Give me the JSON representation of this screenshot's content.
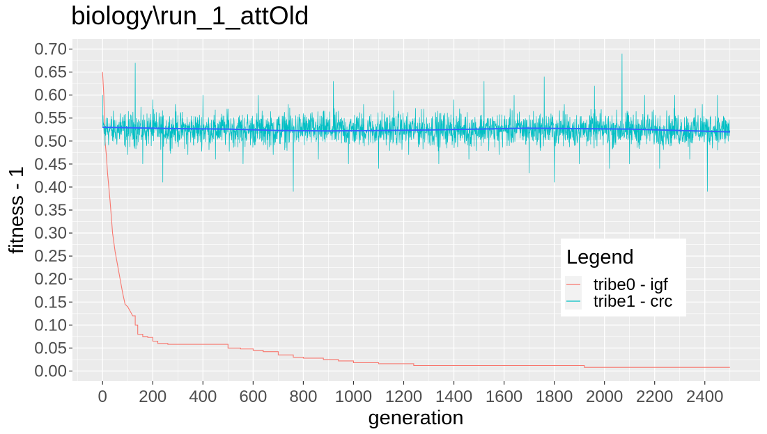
{
  "chart_data": {
    "type": "line",
    "title": "biology\\run_1_attOld",
    "xlabel": "generation",
    "ylabel": "fitness - 1",
    "xlim": [
      -120,
      2620
    ],
    "ylim": [
      -0.022,
      0.722
    ],
    "x_ticks": [
      "0",
      "200",
      "400",
      "600",
      "800",
      "1000",
      "1200",
      "1400",
      "1600",
      "1800",
      "2000",
      "2200",
      "2400"
    ],
    "y_ticks": [
      "0.00",
      "0.05",
      "0.10",
      "0.15",
      "0.20",
      "0.25",
      "0.30",
      "0.35",
      "0.40",
      "0.45",
      "0.50",
      "0.55",
      "0.60",
      "0.65",
      "0.70"
    ],
    "grid": true,
    "background": "#EBEBEB",
    "legend": {
      "title": "Legend",
      "position": "bottom-right",
      "entries": [
        "tribe0 - igf",
        "tribe1 - crc"
      ]
    },
    "series": [
      {
        "name": "tribe0 - igf",
        "color": "#F8766D",
        "x": [
          0,
          5,
          10,
          15,
          20,
          30,
          40,
          50,
          60,
          70,
          80,
          90,
          100,
          110,
          120,
          130,
          140,
          160,
          180,
          200,
          220,
          240,
          260,
          300,
          400,
          490,
          500,
          550,
          600,
          640,
          700,
          760,
          800,
          880,
          940,
          1000,
          1100,
          1200,
          1240,
          1300,
          1400,
          1600,
          1800,
          1900,
          1920,
          2000,
          2200,
          2400,
          2500
        ],
        "y": [
          0.65,
          0.6,
          0.5,
          0.47,
          0.43,
          0.37,
          0.3,
          0.26,
          0.23,
          0.2,
          0.17,
          0.145,
          0.14,
          0.13,
          0.12,
          0.1,
          0.08,
          0.075,
          0.073,
          0.065,
          0.06,
          0.06,
          0.058,
          0.058,
          0.058,
          0.058,
          0.05,
          0.048,
          0.045,
          0.042,
          0.035,
          0.03,
          0.028,
          0.025,
          0.022,
          0.018,
          0.016,
          0.016,
          0.012,
          0.012,
          0.012,
          0.012,
          0.012,
          0.012,
          0.008,
          0.008,
          0.008,
          0.008,
          0.008
        ]
      },
      {
        "name": "tribe1 - crc",
        "color": "#00BFC4",
        "mean": 0.525,
        "x": [
          0,
          10,
          20,
          40,
          70,
          100,
          130,
          160,
          200,
          240,
          290,
          340,
          400,
          450,
          500,
          560,
          620,
          680,
          740,
          760,
          800,
          860,
          920,
          980,
          1040,
          1100,
          1160,
          1220,
          1280,
          1340,
          1400,
          1460,
          1520,
          1580,
          1640,
          1700,
          1760,
          1800,
          1840,
          1900,
          1960,
          2020,
          2070,
          2100,
          2160,
          2220,
          2280,
          2340,
          2390,
          2410,
          2450,
          2500
        ],
        "y": [
          0.6,
          0.49,
          0.55,
          0.5,
          0.56,
          0.47,
          0.67,
          0.45,
          0.59,
          0.41,
          0.58,
          0.47,
          0.6,
          0.46,
          0.57,
          0.45,
          0.6,
          0.47,
          0.58,
          0.39,
          0.56,
          0.46,
          0.63,
          0.45,
          0.58,
          0.44,
          0.61,
          0.47,
          0.57,
          0.45,
          0.59,
          0.46,
          0.63,
          0.47,
          0.6,
          0.43,
          0.64,
          0.41,
          0.58,
          0.45,
          0.62,
          0.44,
          0.69,
          0.45,
          0.6,
          0.44,
          0.6,
          0.46,
          0.58,
          0.39,
          0.6,
          0.52
        ]
      },
      {
        "name": "",
        "color": "#3366FF",
        "x": [
          0,
          100,
          300,
          500,
          700,
          900,
          1100,
          1300,
          1500,
          1700,
          1900,
          2100,
          2300,
          2500
        ],
        "y": [
          0.53,
          0.529,
          0.527,
          0.526,
          0.523,
          0.522,
          0.523,
          0.524,
          0.526,
          0.528,
          0.527,
          0.526,
          0.523,
          0.52
        ]
      }
    ]
  }
}
